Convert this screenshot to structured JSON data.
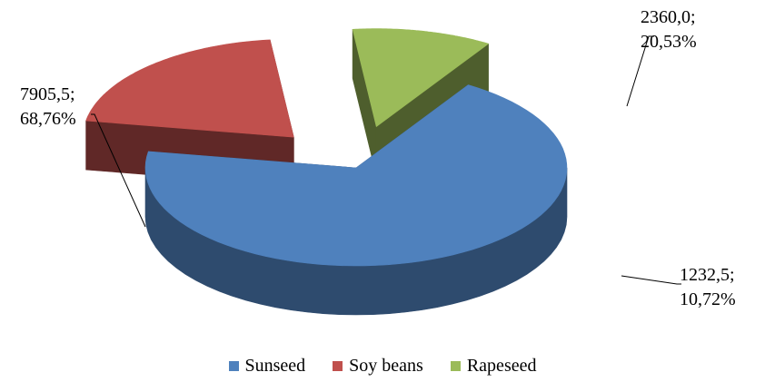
{
  "chart_data": {
    "type": "pie",
    "style": "3d-exploded",
    "title": "",
    "series": [
      {
        "categories": [
          "Sunseed",
          "Soy beans",
          "Rapeseed"
        ],
        "values": [
          7905.5,
          2360.0,
          1232.5
        ],
        "percentages": [
          68.76,
          20.53,
          10.72
        ],
        "colors": [
          "#4f81bd",
          "#c0504d",
          "#9bbb59"
        ]
      }
    ],
    "data_labels": [
      {
        "value": "7905,5;",
        "percent": "68,76%"
      },
      {
        "value": "2360,0;",
        "percent": "20,53%"
      },
      {
        "value": "1232,5;",
        "percent": "10,72%"
      }
    ],
    "legend": {
      "position": "bottom",
      "entries": [
        "Sunseed",
        "Soy beans",
        "Rapeseed"
      ]
    }
  }
}
